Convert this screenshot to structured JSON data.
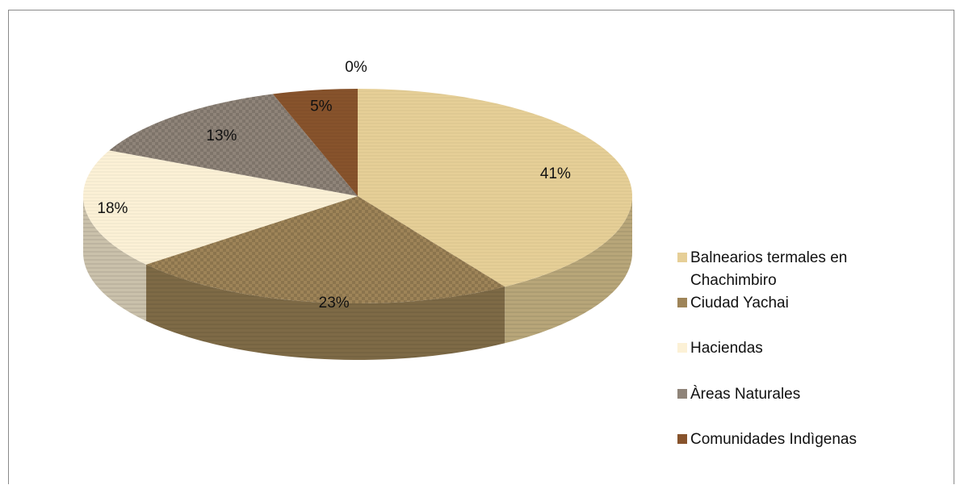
{
  "chart_data": {
    "type": "pie",
    "style": "3d",
    "categories": [
      "Balnearios termales en Chachimbiro",
      "Ciudad Yachai",
      "Haciendas",
      "Àreas Naturales",
      "Comunidades Indìgenas",
      ""
    ],
    "values": [
      41,
      23,
      18,
      13,
      5,
      0
    ],
    "data_labels": [
      "41%",
      "23%",
      "18%",
      "13%",
      "5%",
      "0%"
    ],
    "colors": [
      "#e6cf97",
      "#9e8458",
      "#fcf1d6",
      "#8f8479",
      "#87532c",
      "#87532c"
    ],
    "legend": {
      "position": "right",
      "entries": [
        {
          "label_line1": "Balnearios termales en",
          "label_line2": "Chachimbiro",
          "color": "#e6cf97"
        },
        {
          "label_line1": "Ciudad Yachai",
          "label_line2": "",
          "color": "#9e8458"
        },
        {
          "label_line1": "Haciendas",
          "label_line2": "",
          "color": "#fcf1d6"
        },
        {
          "label_line1": "Àreas Naturales",
          "label_line2": "",
          "color": "#8f8479"
        },
        {
          "label_line1": "Comunidades Indìgenas",
          "label_line2": "",
          "color": "#87532c"
        }
      ]
    }
  }
}
